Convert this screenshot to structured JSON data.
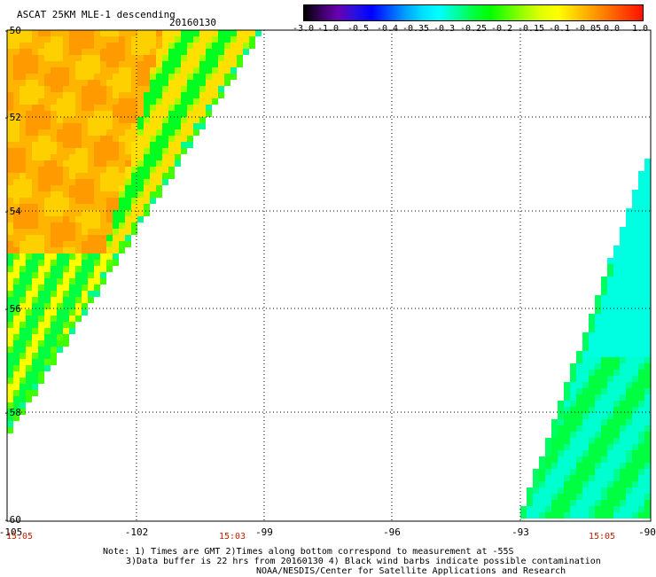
{
  "header": {
    "title": "ASCAT 25KM MLE-1 descending",
    "date": "20160130"
  },
  "colorbar": {
    "labels": [
      "-3.0",
      "-1.0",
      "-0.5",
      "-0.4",
      "-0.35",
      "-0.3",
      "-0.25",
      "-0.2",
      "-0.15",
      "-0.1",
      "-0.05",
      "0.0",
      "1.0"
    ],
    "colors": [
      "#000000",
      "#5a00a0",
      "#0000ff",
      "#0090ff",
      "#00ffff",
      "#00ff60",
      "#00ff00",
      "#60ff00",
      "#c0ff00",
      "#ffff00",
      "#ffb000",
      "#ff7000",
      "#ff0000"
    ]
  },
  "axes": {
    "lat_labels": [
      "-50",
      "-52",
      "-54",
      "-56",
      "-58",
      "-60"
    ],
    "lon_labels": [
      "-105",
      "-102",
      "-99",
      "-96",
      "-93",
      "-90"
    ],
    "time_labels": [
      "15:05",
      "15:03",
      "15:05"
    ]
  },
  "notes": {
    "line1": "Note: 1) Times are GMT 2)Times along bottom correspond to measurement at -55S",
    "line2": "3)Data buffer is 22 hrs from 20160130 4) Black wind barbs indicate possible contamination",
    "line3": "NOAA/NESDIS/Center for Satellite Applications and Research"
  }
}
